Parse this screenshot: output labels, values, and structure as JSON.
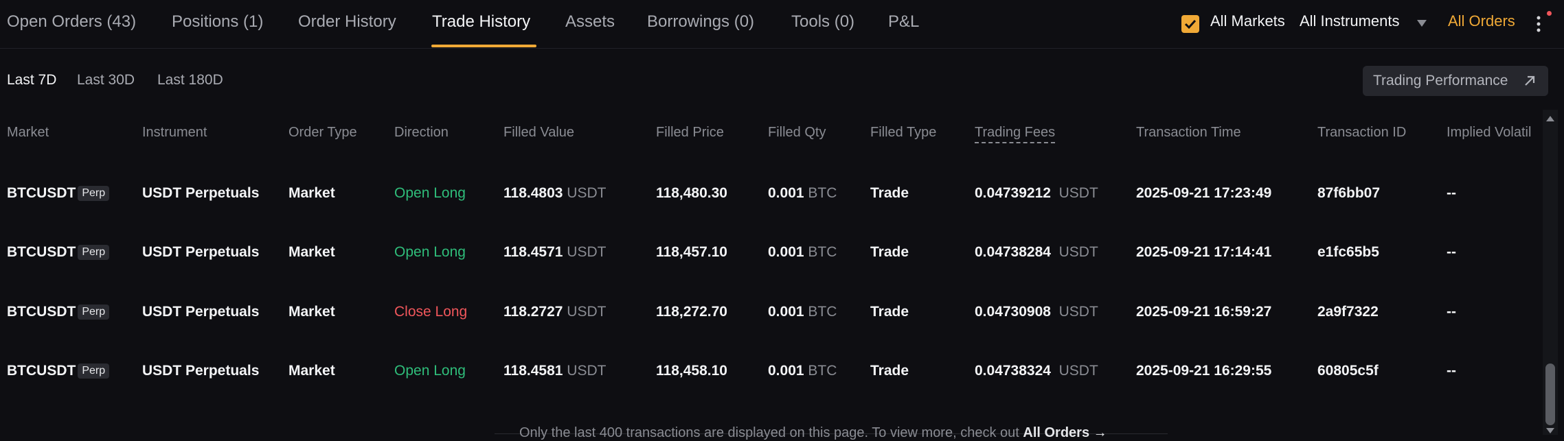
{
  "tabs": [
    {
      "label": "Open Orders (43)"
    },
    {
      "label": "Positions (1)"
    },
    {
      "label": "Order History"
    },
    {
      "label": "Trade History"
    },
    {
      "label": "Assets"
    },
    {
      "label": "Borrowings (0)"
    },
    {
      "label": "Tools (0)"
    },
    {
      "label": "P&L"
    }
  ],
  "active_tab": "Trade History",
  "controls": {
    "all_markets_label": "All Markets",
    "all_markets_checked": true,
    "instruments_value": "All Instruments",
    "all_orders_link": "All Orders"
  },
  "filters": {
    "ranges": [
      "Last 7D",
      "Last 30D",
      "Last 180D"
    ],
    "selected": "Last 7D"
  },
  "trading_performance_label": "Trading Performance",
  "columns": [
    "Market",
    "Instrument",
    "Order Type",
    "Direction",
    "Filled Value",
    "Filled Price",
    "Filled Qty",
    "Filled Type",
    "Trading Fees",
    "Transaction Time",
    "Transaction ID",
    "Implied Volatil"
  ],
  "rows": [
    {
      "market": "BTCUSDT",
      "tag": "Perp",
      "instrument": "USDT Perpetuals",
      "order_type": "Market",
      "direction": "Open Long",
      "filled_value": "118.4803",
      "value_unit": "USDT",
      "filled_price": "118,480.30",
      "filled_qty": "0.001",
      "qty_unit": "BTC",
      "filled_type": "Trade",
      "fees": "0.04739212",
      "fee_unit": "USDT",
      "time": "2025-09-21 17:23:49",
      "id": "87f6bb07",
      "iv": "--"
    },
    {
      "market": "BTCUSDT",
      "tag": "Perp",
      "instrument": "USDT Perpetuals",
      "order_type": "Market",
      "direction": "Open Long",
      "filled_value": "118.4571",
      "value_unit": "USDT",
      "filled_price": "118,457.10",
      "filled_qty": "0.001",
      "qty_unit": "BTC",
      "filled_type": "Trade",
      "fees": "0.04738284",
      "fee_unit": "USDT",
      "time": "2025-09-21 17:14:41",
      "id": "e1fc65b5",
      "iv": "--"
    },
    {
      "market": "BTCUSDT",
      "tag": "Perp",
      "instrument": "USDT Perpetuals",
      "order_type": "Market",
      "direction": "Close Long",
      "filled_value": "118.2727",
      "value_unit": "USDT",
      "filled_price": "118,272.70",
      "filled_qty": "0.001",
      "qty_unit": "BTC",
      "filled_type": "Trade",
      "fees": "0.04730908",
      "fee_unit": "USDT",
      "time": "2025-09-21 16:59:27",
      "id": "2a9f7322",
      "iv": "--"
    },
    {
      "market": "BTCUSDT",
      "tag": "Perp",
      "instrument": "USDT Perpetuals",
      "order_type": "Market",
      "direction": "Open Long",
      "filled_value": "118.4581",
      "value_unit": "USDT",
      "filled_price": "118,458.10",
      "filled_qty": "0.001",
      "qty_unit": "BTC",
      "filled_type": "Trade",
      "fees": "0.04738324",
      "fee_unit": "USDT",
      "time": "2025-09-21 16:29:55",
      "id": "60805c5f",
      "iv": "--"
    }
  ],
  "footer": {
    "text": "Only the last 400 transactions are displayed on this page. To view more, check out",
    "link": "All Orders →"
  },
  "colors": {
    "accent": "#f0a936",
    "long": "#2fbd7a",
    "short": "#f0565b",
    "background": "#0e0e12"
  },
  "icons": {
    "checkbox": "checkmark-icon",
    "dropdown": "caret-down-icon",
    "more": "more-vertical-icon",
    "performance": "arrow-up-right-icon"
  }
}
